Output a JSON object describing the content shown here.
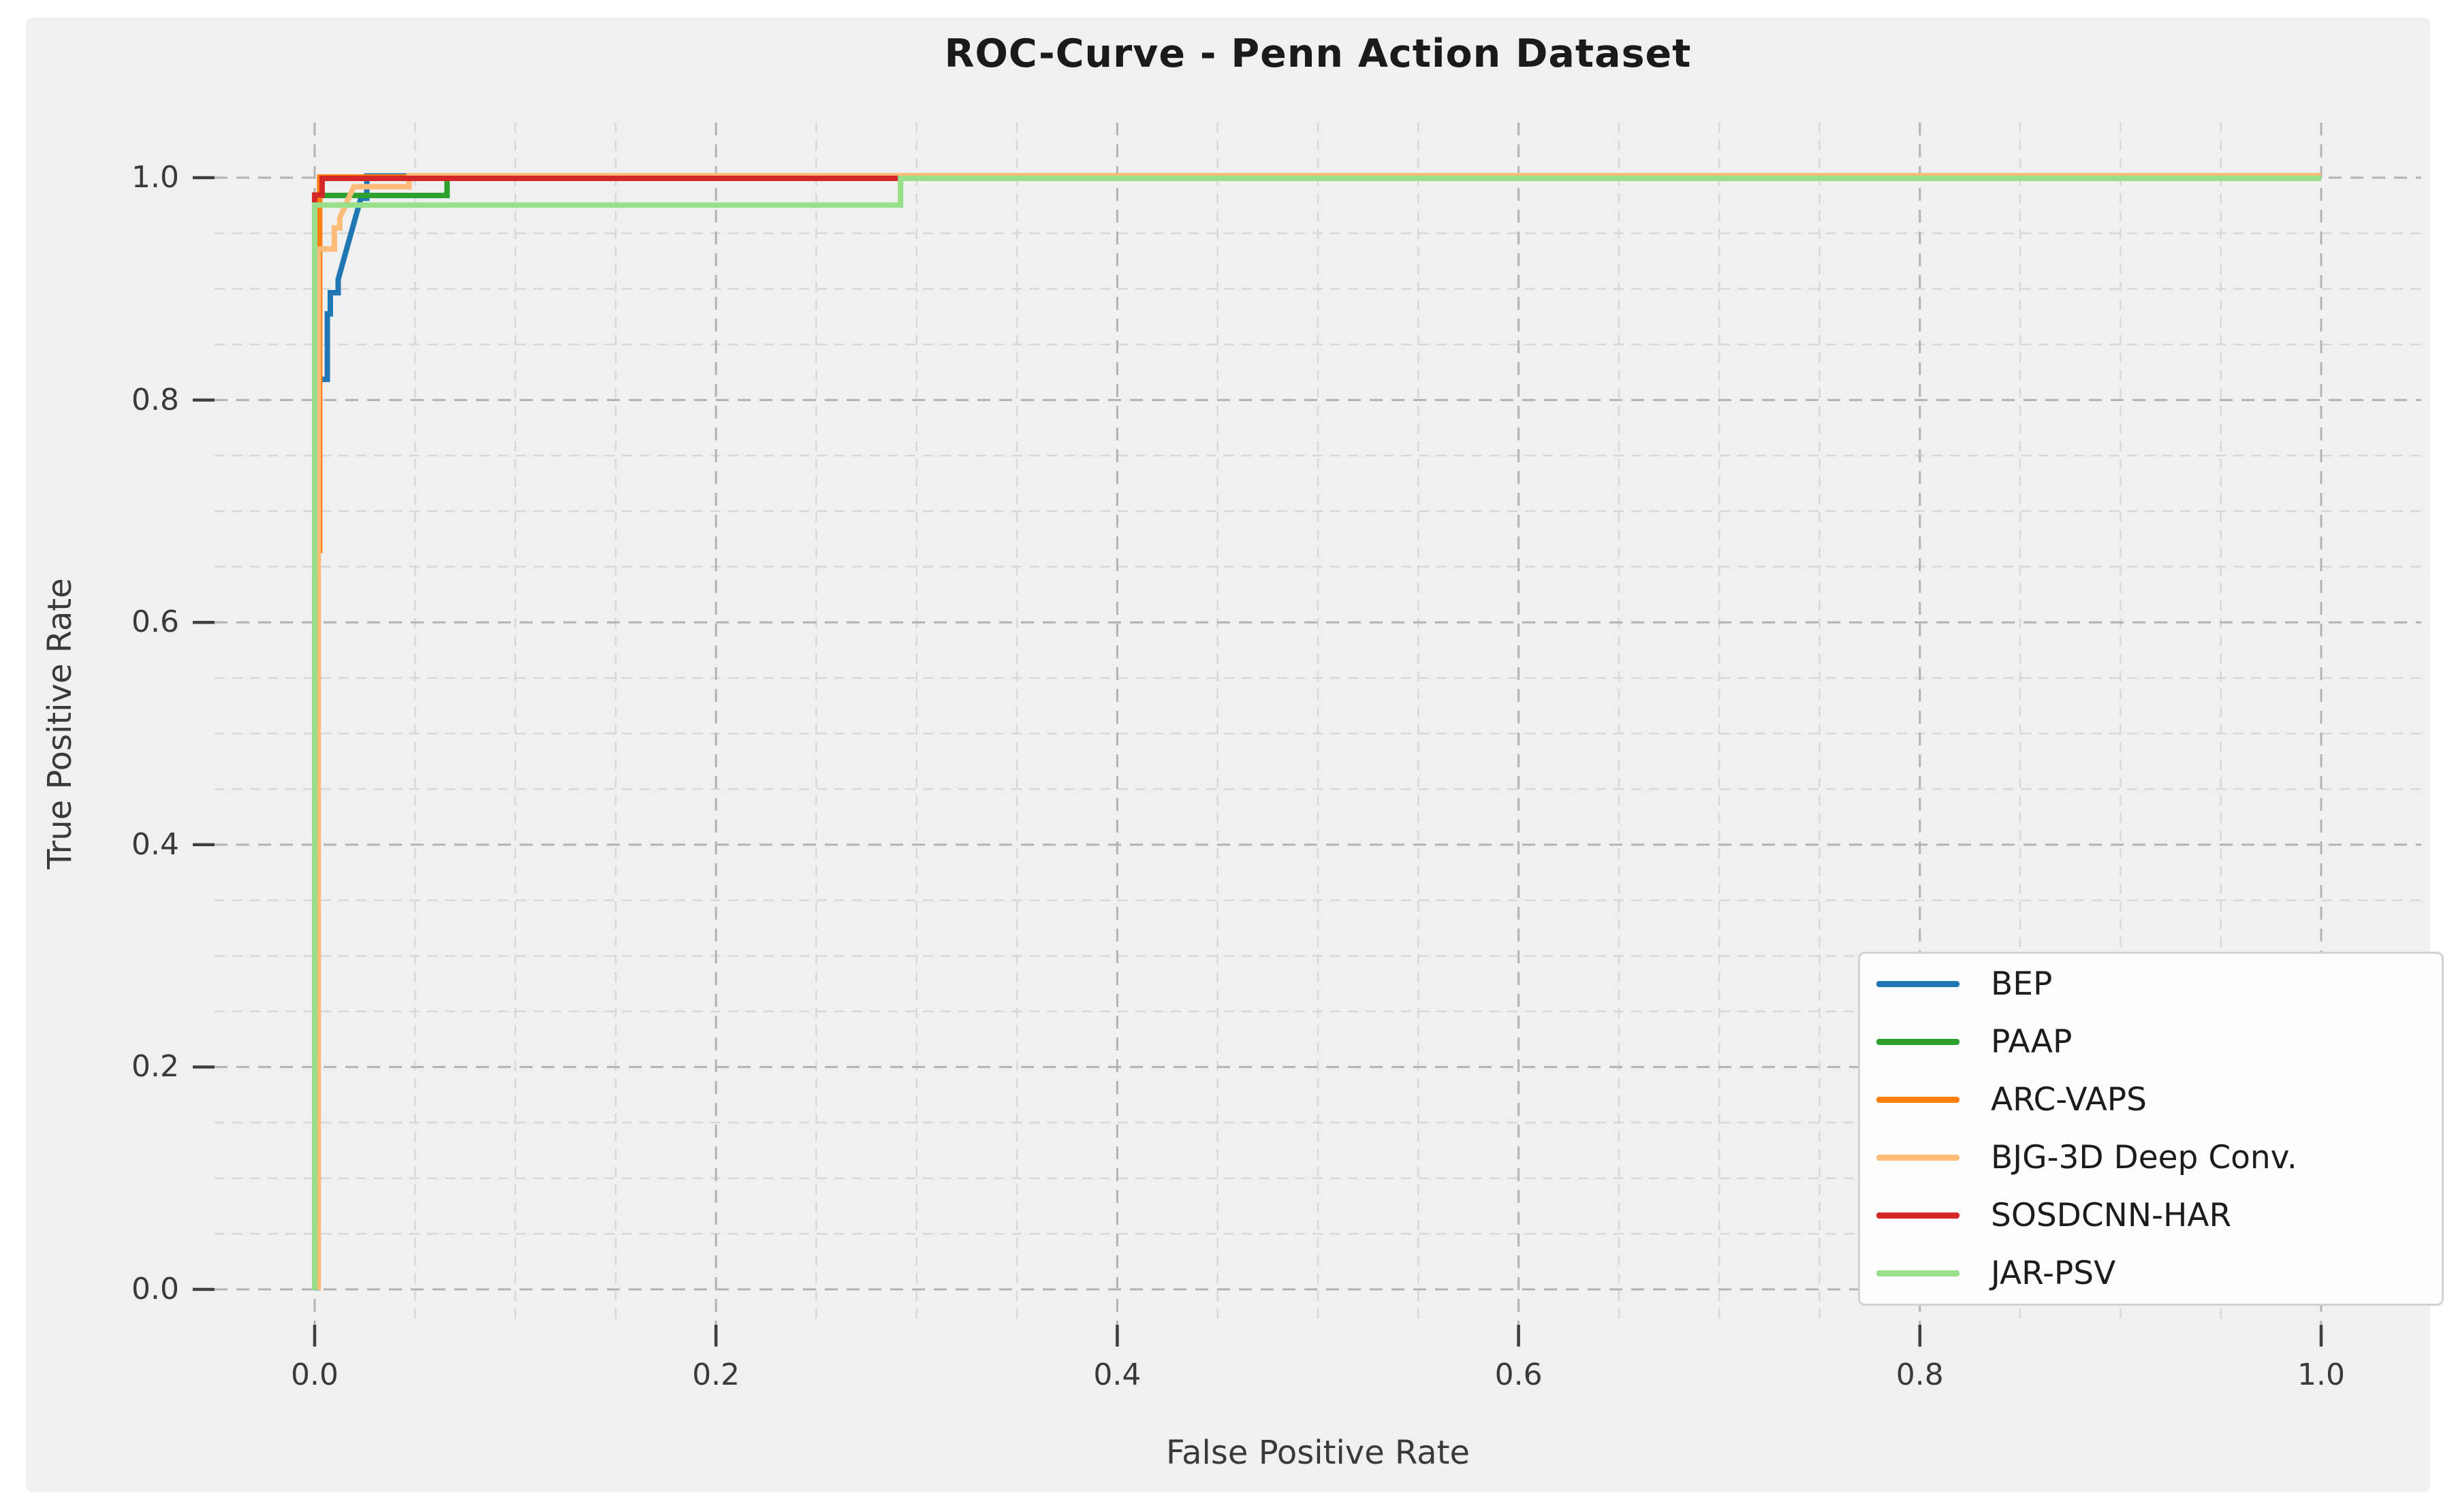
{
  "figure": {
    "background": "#ffffff",
    "panel_background": "#f0f0f0"
  },
  "text_colors": {
    "title": "#1a1a1a",
    "axis_label": "#3a3a3a",
    "tick_label": "#3a3a3a",
    "legend_label": "#1c1c1c"
  },
  "chart_data": {
    "type": "line",
    "subtype": "roc-step-curves",
    "title": "ROC-Curve - Penn Action Dataset",
    "xlabel": "False Positive Rate",
    "ylabel": "True Positive Rate",
    "xlim": [
      -0.05,
      1.05
    ],
    "ylim": [
      -0.05,
      1.05
    ],
    "x_ticks": {
      "values": [
        0,
        0.2,
        0.4,
        0.6,
        0.8,
        1.0
      ],
      "labels": [
        "0.0",
        "0.2",
        "0.4",
        "0.6",
        "0.8",
        "1.0"
      ]
    },
    "y_ticks": {
      "values": [
        0,
        0.2,
        0.4,
        0.6,
        0.8,
        1.0
      ],
      "labels": [
        "0.0",
        "0.2",
        "0.4",
        "0.6",
        "0.8",
        "1.0"
      ]
    },
    "grid": {
      "visible": true,
      "style": "dashed",
      "major_step": 0.2,
      "minor_step": 0.05,
      "major_color": "#b3b3b3",
      "minor_color": "#d8d8d8"
    },
    "tick_mark_color": "#3f3f3f",
    "legend_position": "lower right",
    "series": [
      {
        "name": "BEP",
        "color": "#1f77b4",
        "points": [
          [
            0,
            0
          ],
          [
            0.0013,
            0
          ],
          [
            0.0013,
            0.817
          ],
          [
            0.0063,
            0.817
          ],
          [
            0.0063,
            0.876
          ],
          [
            0.0078,
            0.876
          ],
          [
            0.0078,
            0.895
          ],
          [
            0.0117,
            0.895
          ],
          [
            0.0117,
            0.907
          ],
          [
            0.023,
            0.98
          ],
          [
            0.026,
            0.98
          ],
          [
            0.026,
            1.0
          ],
          [
            1,
            1.0
          ]
        ]
      },
      {
        "name": "PAAP",
        "color": "#2ca02c",
        "points": [
          [
            0,
            0
          ],
          [
            0,
            0.984
          ],
          [
            0.066,
            0.984
          ],
          [
            0.066,
            1.0
          ],
          [
            1,
            1.0
          ]
        ]
      },
      {
        "name": "ARC-VAPS",
        "color": "#ff7f0e",
        "points": [
          [
            0,
            0
          ],
          [
            0,
            0.664
          ],
          [
            0.0025,
            0.664
          ],
          [
            0.0025,
            1.0
          ],
          [
            1,
            1.0
          ]
        ]
      },
      {
        "name": "BJG-3D Deep Conv.",
        "color": "#ffbb78",
        "points": [
          [
            0,
            0
          ],
          [
            0.0018,
            0
          ],
          [
            0.0018,
            0.934
          ],
          [
            0.0098,
            0.934
          ],
          [
            0.0098,
            0.953
          ],
          [
            0.0125,
            0.953
          ],
          [
            0.0125,
            0.962
          ],
          [
            0.0195,
            0.99
          ],
          [
            0.047,
            0.99
          ],
          [
            0.047,
            1.0
          ],
          [
            1,
            1.0
          ]
        ]
      },
      {
        "name": "SOSDCNN-HAR",
        "color": "#d62728",
        "points": [
          [
            0,
            0
          ],
          [
            0,
            0.985
          ],
          [
            0.0037,
            0.985
          ],
          [
            0.0037,
            1.0
          ],
          [
            1,
            1.0
          ]
        ]
      },
      {
        "name": "JAR-PSV",
        "color": "#98df8a",
        "points": [
          [
            0,
            0
          ],
          [
            0,
            0.976
          ],
          [
            0.292,
            0.976
          ],
          [
            0.292,
            1.0
          ],
          [
            1,
            1.0
          ]
        ]
      }
    ]
  }
}
